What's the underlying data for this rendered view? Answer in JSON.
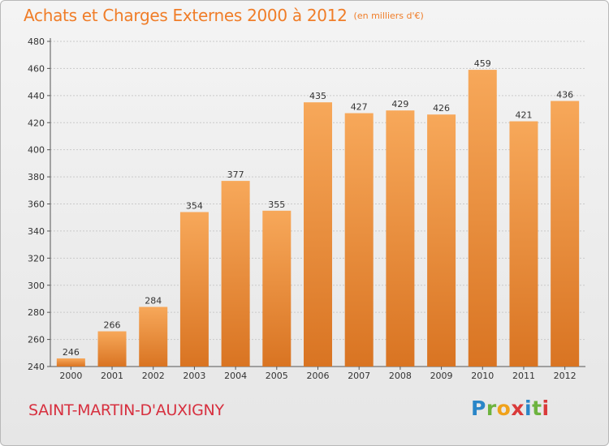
{
  "title": "Achats et Charges Externes 2000 à 2012",
  "unit": "(en milliers d'€)",
  "city": "SAINT-MARTIN-D'AUXIGNY",
  "logo": {
    "p": "P",
    "r": "r",
    "o": "o",
    "x": "x",
    "i1": "i",
    "t": "t",
    "i2": "i"
  },
  "colors": {
    "bar_light": "#f7a85a",
    "bar_dark": "#d97422",
    "title": "#f07d28",
    "city": "#d7303f",
    "grid": "#c9c9c9"
  },
  "chart_data": {
    "type": "bar",
    "title": "Achats et Charges Externes 2000 à 2012",
    "subtitle": "(en milliers d'€)",
    "xlabel": "",
    "ylabel": "",
    "categories": [
      "2000",
      "2001",
      "2002",
      "2003",
      "2004",
      "2005",
      "2006",
      "2007",
      "2008",
      "2009",
      "2010",
      "2011",
      "2012"
    ],
    "values": [
      246,
      266,
      284,
      354,
      377,
      355,
      435,
      427,
      429,
      426,
      459,
      421,
      436
    ],
    "ylim": [
      240,
      480
    ],
    "yticks": [
      240,
      260,
      280,
      300,
      320,
      340,
      360,
      380,
      400,
      420,
      440,
      460,
      480
    ],
    "grid": true,
    "legend": "none",
    "data_labels": true
  }
}
